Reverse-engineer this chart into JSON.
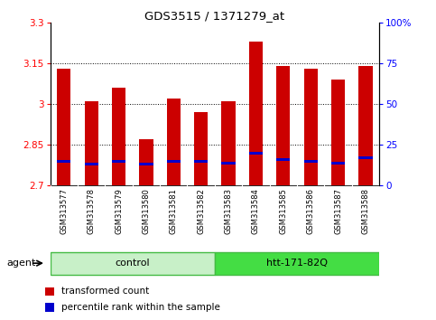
{
  "title": "GDS3515 / 1371279_at",
  "samples": [
    "GSM313577",
    "GSM313578",
    "GSM313579",
    "GSM313580",
    "GSM313581",
    "GSM313582",
    "GSM313583",
    "GSM313584",
    "GSM313585",
    "GSM313586",
    "GSM313587",
    "GSM313588"
  ],
  "transformed_count": [
    3.13,
    3.01,
    3.06,
    2.87,
    3.02,
    2.97,
    3.01,
    3.23,
    3.14,
    3.13,
    3.09,
    3.14
  ],
  "percentile_rank": [
    15,
    13,
    15,
    13,
    15,
    15,
    14,
    20,
    16,
    15,
    14,
    17
  ],
  "groups": [
    {
      "label": "control",
      "start": 0,
      "end": 6,
      "color": "#c8f0c8",
      "border": "#44bb44"
    },
    {
      "label": "htt-171-82Q",
      "start": 6,
      "end": 12,
      "color": "#44dd44",
      "border": "#44bb44"
    }
  ],
  "ymin": 2.7,
  "ymax": 3.3,
  "yticks": [
    2.7,
    2.85,
    3.0,
    3.15,
    3.3
  ],
  "ytick_labels": [
    "2.7",
    "2.85",
    "3",
    "3.15",
    "3.3"
  ],
  "right_yticks": [
    0,
    25,
    50,
    75,
    100
  ],
  "right_ytick_labels": [
    "0",
    "25",
    "50",
    "75",
    "100%"
  ],
  "gridlines": [
    2.85,
    3.0,
    3.15
  ],
  "bar_color": "#cc0000",
  "percentile_color": "#0000cc",
  "bar_width": 0.5,
  "agent_label": "agent",
  "legend_items": [
    {
      "color": "#cc0000",
      "label": "transformed count"
    },
    {
      "color": "#0000cc",
      "label": "percentile rank within the sample"
    }
  ],
  "background_color": "#ffffff",
  "plot_bg": "#ffffff",
  "tick_area_bg": "#bbbbbb",
  "figsize": [
    4.83,
    3.54
  ],
  "dpi": 100
}
